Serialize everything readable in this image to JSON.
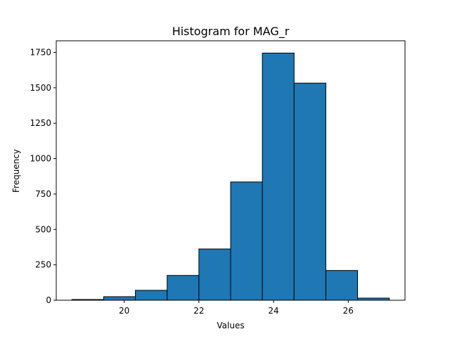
{
  "colors": {
    "bar_fill": "#1f77b4",
    "bar_edge": "#000000",
    "axis": "#000000",
    "background": "#ffffff"
  },
  "chart_data": {
    "type": "bar",
    "title": "Histogram for MAG_r",
    "xlabel": "Values",
    "ylabel": "Frequency",
    "bin_edges": [
      18.6,
      19.45,
      20.3,
      21.15,
      22.0,
      22.85,
      23.7,
      24.55,
      25.4,
      26.25,
      27.1
    ],
    "values": [
      5,
      25,
      70,
      175,
      362,
      835,
      1745,
      1533,
      210,
      15
    ],
    "xlim": [
      18.18,
      27.52
    ],
    "ylim": [
      0,
      1832
    ],
    "x_ticks": [
      20,
      22,
      24,
      26
    ],
    "x_tick_labels": [
      "20",
      "22",
      "24",
      "26"
    ],
    "y_ticks": [
      0,
      250,
      500,
      750,
      1000,
      1250,
      1500,
      1750
    ],
    "y_tick_labels": [
      "0",
      "250",
      "500",
      "750",
      "1000",
      "1250",
      "1500",
      "1750"
    ],
    "grid": false,
    "legend": "none"
  }
}
